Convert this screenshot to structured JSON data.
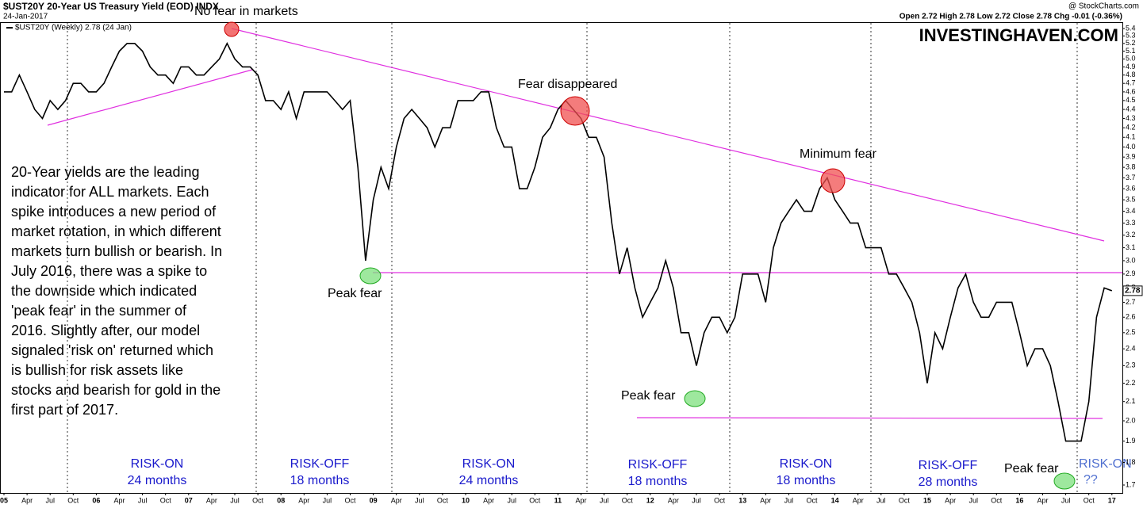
{
  "chart_data": {
    "type": "line",
    "title": "$UST20Y 20-Year US Treasury Yield (EOD) INDX",
    "source": "@ StockCharts.com",
    "date": "24-Jan-2017",
    "quote": "Open 2.72 High 2.78 Low 2.72 Close 2.78 Chg -0.01 (-0.36%)",
    "watermark": "INVESTINGHAVEN.COM",
    "log_scale": true,
    "grid": false,
    "ylim": [
      1.7,
      5.4
    ],
    "yticks": [
      1.7,
      1.8,
      1.9,
      {
        "value": 2,
        "label": "2.0"
      },
      2.1,
      2.2,
      2.3,
      2.4,
      2.5,
      2.6,
      2.7,
      2.8,
      2.9,
      {
        "value": 3,
        "label": "3.0"
      },
      3.1,
      3.2,
      3.3,
      3.4,
      3.5,
      3.6,
      3.7,
      3.8,
      3.9,
      {
        "value": 4,
        "label": "4.0"
      },
      4.1,
      4.2,
      4.3,
      4.4,
      4.5,
      4.6,
      4.7,
      4.8,
      4.9,
      {
        "value": 5,
        "label": "5.0"
      },
      5.1,
      5.2,
      5.3,
      5.4
    ],
    "categories": [
      "05",
      null,
      null,
      "Apr",
      null,
      null,
      "Jul",
      null,
      null,
      "Oct",
      null,
      null,
      "06",
      null,
      null,
      "Apr",
      null,
      null,
      "Jul",
      null,
      null,
      "Oct",
      null,
      null,
      "07",
      null,
      null,
      "Apr",
      null,
      null,
      "Jul",
      null,
      null,
      "Oct",
      null,
      null,
      "08",
      null,
      null,
      "Apr",
      null,
      null,
      "Jul",
      null,
      null,
      "Oct",
      null,
      null,
      "09",
      null,
      null,
      "Apr",
      null,
      null,
      "Jul",
      null,
      null,
      "Oct",
      null,
      null,
      "10",
      null,
      null,
      "Apr",
      null,
      null,
      "Jul",
      null,
      null,
      "Oct",
      null,
      null,
      "11",
      null,
      null,
      "Apr",
      null,
      null,
      "Jul",
      null,
      null,
      "Oct",
      null,
      null,
      "12",
      null,
      null,
      "Apr",
      null,
      null,
      "Jul",
      null,
      null,
      "Oct",
      null,
      null,
      "13",
      null,
      null,
      "Apr",
      null,
      null,
      "Jul",
      null,
      null,
      "Oct",
      null,
      null,
      "14",
      null,
      null,
      "Apr",
      null,
      null,
      "Jul",
      null,
      null,
      "Oct",
      null,
      null,
      "15",
      null,
      null,
      "Apr",
      null,
      null,
      "Jul",
      null,
      null,
      "Oct",
      null,
      null,
      "16",
      null,
      null,
      "Apr",
      null,
      null,
      "Jul",
      null,
      null,
      "Oct",
      null,
      null,
      "17"
    ],
    "series": [
      {
        "name": "$UST20Y (Weekly) 2.78 (24 Jan)",
        "color": "#000000",
        "values": [
          4.6,
          4.6,
          4.8,
          4.6,
          4.4,
          4.3,
          4.5,
          4.4,
          4.5,
          4.7,
          4.7,
          4.6,
          4.6,
          4.7,
          4.9,
          5.1,
          5.2,
          5.2,
          5.1,
          4.9,
          4.8,
          4.8,
          4.7,
          4.9,
          4.9,
          4.8,
          4.8,
          4.9,
          5.0,
          5.2,
          5.0,
          4.9,
          4.9,
          4.8,
          4.5,
          4.5,
          4.4,
          4.6,
          4.3,
          4.6,
          4.6,
          4.6,
          4.6,
          4.5,
          4.4,
          4.5,
          3.8,
          3.0,
          3.5,
          3.8,
          3.6,
          4.0,
          4.3,
          4.4,
          4.3,
          4.2,
          4.0,
          4.2,
          4.2,
          4.5,
          4.5,
          4.5,
          4.6,
          4.6,
          4.2,
          4.0,
          4.0,
          3.6,
          3.6,
          3.8,
          4.1,
          4.2,
          4.4,
          4.5,
          4.4,
          4.3,
          4.1,
          4.1,
          3.9,
          3.3,
          2.9,
          3.1,
          2.8,
          2.6,
          2.7,
          2.8,
          3.0,
          2.8,
          2.5,
          2.5,
          2.3,
          2.5,
          2.6,
          2.6,
          2.5,
          2.6,
          2.9,
          2.9,
          2.9,
          2.7,
          3.1,
          3.3,
          3.4,
          3.5,
          3.4,
          3.4,
          3.6,
          3.7,
          3.5,
          3.4,
          3.3,
          3.3,
          3.1,
          3.1,
          3.1,
          2.9,
          2.9,
          2.8,
          2.7,
          2.5,
          2.2,
          2.5,
          2.4,
          2.6,
          2.8,
          2.9,
          2.7,
          2.6,
          2.6,
          2.7,
          2.7,
          2.7,
          2.5,
          2.3,
          2.4,
          2.4,
          2.3,
          2.1,
          1.9,
          1.9,
          1.9,
          2.1,
          2.6,
          2.8,
          2.78
        ]
      }
    ],
    "annotations": [
      "No fear in markets",
      "Fear disappeared",
      "Minimum fear",
      "Peak fear",
      "Peak fear",
      "Peak fear",
      "RISK-ON",
      "24 months",
      "RISK-OFF",
      "18 months",
      "RISK-ON",
      "24 months",
      "RISK-OFF",
      "18 months",
      "RISK-ON",
      "18 months",
      "RISK-OFF",
      "28 months",
      "RISK-ON",
      "??"
    ],
    "commentary": [
      "20-Year yields are the leading",
      "indicator for ALL markets. Each",
      "spike introduces a new period of",
      "market rotation, in which different",
      "markets turn bullish or bearish. In",
      "July 2016, there was a spike to",
      "the downside which indicated",
      "'peak fear' in the summer of",
      "2016. Slightly after, our model",
      "signaled 'risk on' returned which",
      "is bullish for risk assets like",
      "stocks and bearish for gold in the",
      "first part of 2017."
    ]
  }
}
